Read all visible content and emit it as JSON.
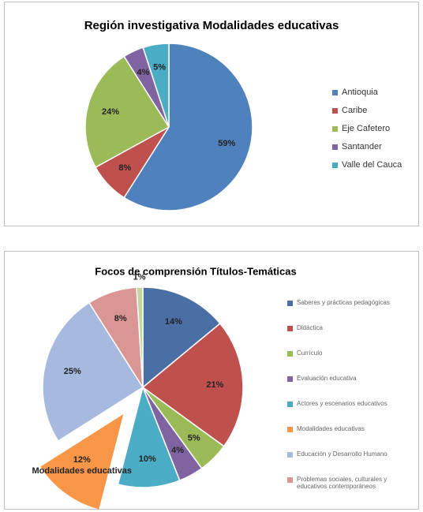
{
  "chart_data": [
    {
      "type": "pie",
      "title": "Región investigativa Modalidades educativas",
      "categories": [
        "Antioquia",
        "Caribe",
        "Eje Cafetero",
        "Santander",
        "Valle del Cauca"
      ],
      "values": [
        59,
        8,
        24,
        4,
        5
      ],
      "value_labels": [
        "59%",
        "8%",
        "24%",
        "4%",
        "5%"
      ],
      "colors": [
        "#4f81bd",
        "#c0504d",
        "#9bbb59",
        "#8064a2",
        "#4bacc6"
      ],
      "legend": "right"
    },
    {
      "type": "pie",
      "title": "Focos de comprensión Títulos-Temáticas",
      "categories": [
        "Saberes y prácticas pedagógicas",
        "Didáctica",
        "Currículo",
        "Evaluación educativa",
        "Actores y escenarios educativos",
        "Modalidades educativas",
        "Educación y Desarrollo Humano",
        "Problemas sociales, culturales y educativos contemporáneos",
        null
      ],
      "values": [
        14,
        21,
        5,
        4,
        10,
        12,
        25,
        8,
        1
      ],
      "value_labels": [
        "14%",
        "21%",
        "5%",
        "4%",
        "10%",
        "12%",
        "25%",
        "8%",
        "1%"
      ],
      "colors": [
        "#4a6fa5",
        "#c0504d",
        "#9bbb59",
        "#8064a2",
        "#4bacc6",
        "#f79646",
        "#a6b9de",
        "#d99694",
        "#c3d69b"
      ],
      "exploded": [
        5
      ],
      "legend": "right"
    }
  ]
}
